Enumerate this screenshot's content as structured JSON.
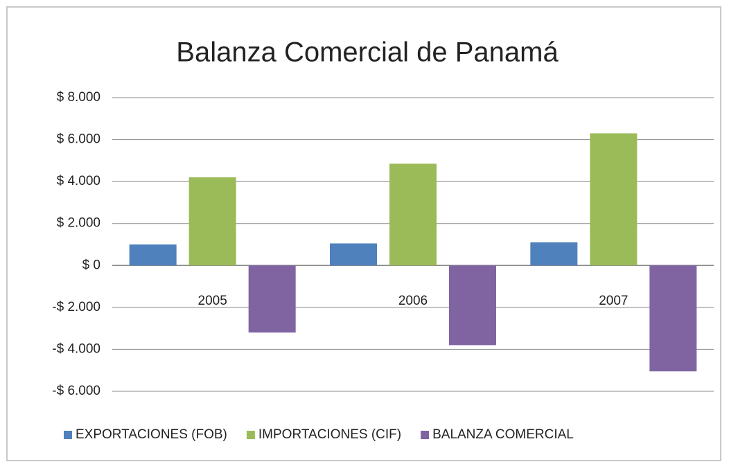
{
  "chart_data": {
    "type": "bar",
    "title": "Balanza Comercial de Panamá",
    "categories": [
      "2005",
      "2006",
      "2007"
    ],
    "series": [
      {
        "name": "EXPORTACIONES (FOB)",
        "color": "#4f81bd",
        "values": [
          1000,
          1050,
          1100
        ]
      },
      {
        "name": "IMPORTACIONES (CIF)",
        "color": "#9bbb59",
        "values": [
          4200,
          4850,
          6300
        ]
      },
      {
        "name": "BALANZA COMERCIAL",
        "color": "#8064a2",
        "values": [
          -3200,
          -3800,
          -5050
        ]
      }
    ],
    "ylim": [
      -6000,
      8000
    ],
    "yticks": [
      {
        "value": -6000,
        "label": "-$ 6.000"
      },
      {
        "value": -4000,
        "label": "-$ 4.000"
      },
      {
        "value": -2000,
        "label": "-$ 2.000"
      },
      {
        "value": 0,
        "label": "$ 0"
      },
      {
        "value": 2000,
        "label": "$ 2.000"
      },
      {
        "value": 4000,
        "label": "$ 4.000"
      },
      {
        "value": 6000,
        "label": "$ 6.000"
      },
      {
        "value": 8000,
        "label": "$ 8.000"
      }
    ],
    "grid": true,
    "legend": "bottom"
  }
}
